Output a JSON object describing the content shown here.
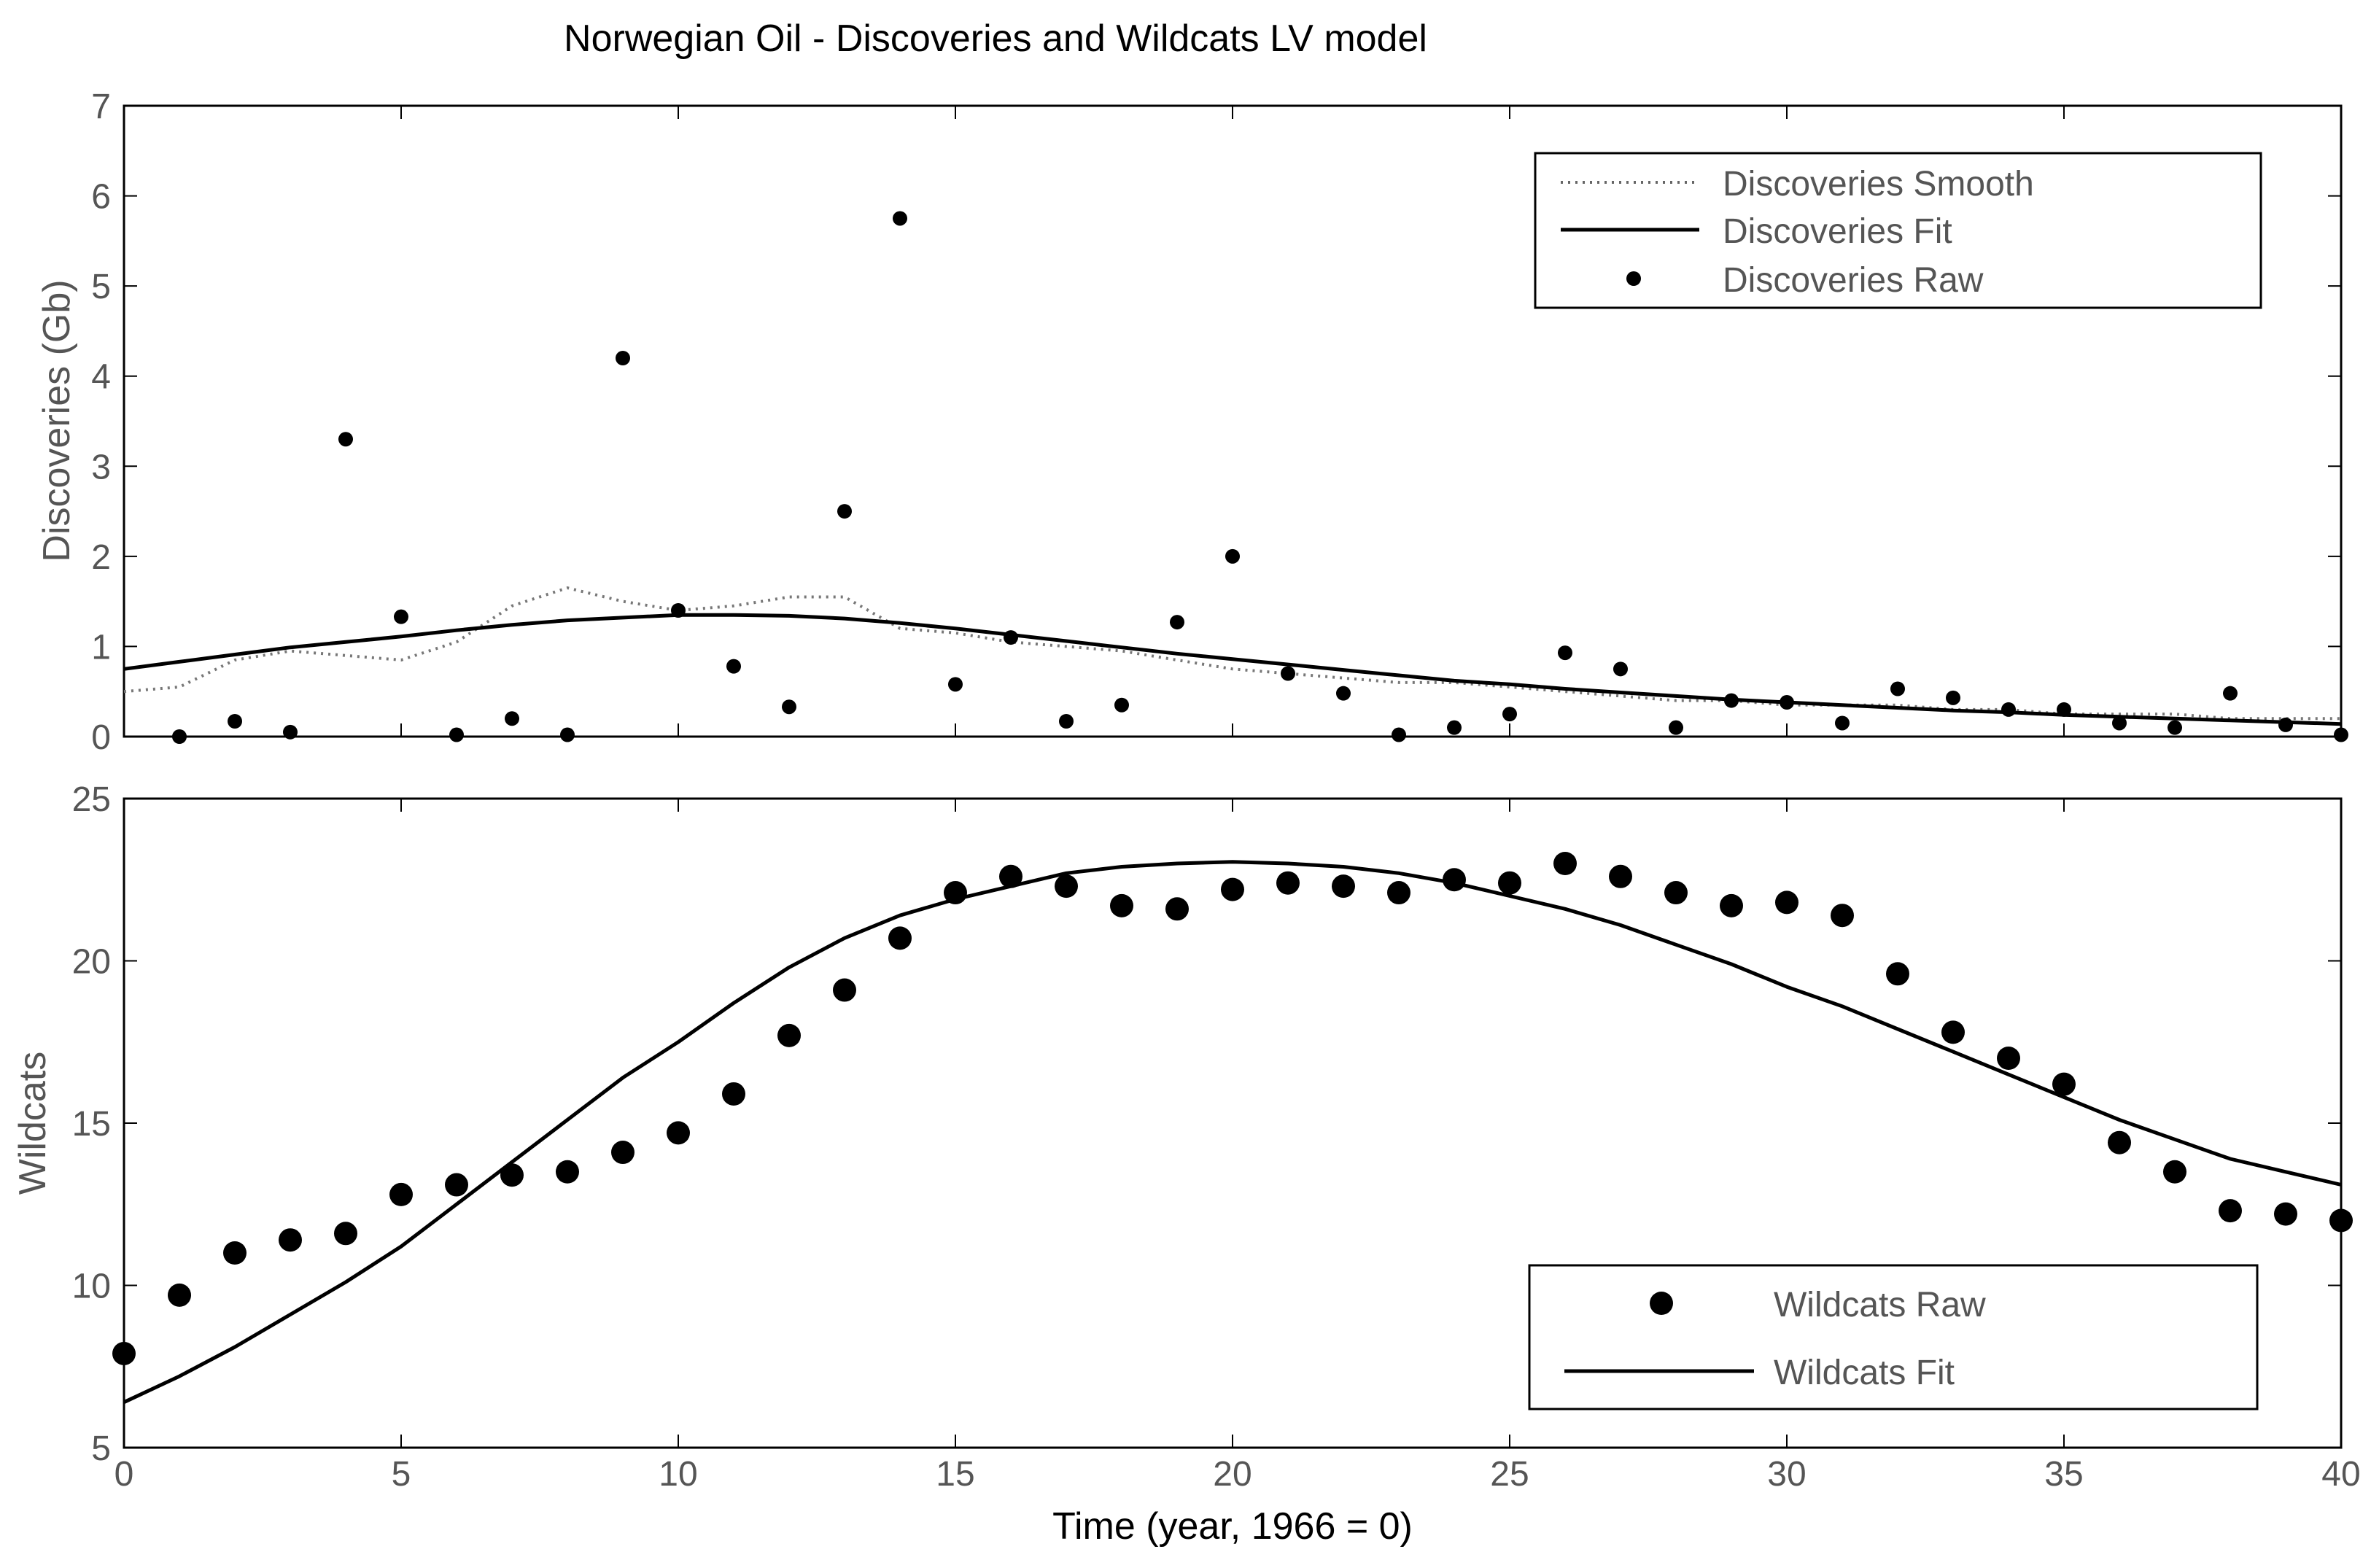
{
  "figure": {
    "title": "Norwegian Oil - Discoveries and Wildcats LV model",
    "xlabel": "Time (year, 1966 = 0)"
  },
  "chart_data": [
    {
      "type": "line",
      "panel": "top",
      "title": "Norwegian Oil - Discoveries and Wildcats LV model",
      "xlabel": "",
      "ylabel": "Discoveries (Gb)",
      "xlim": [
        0,
        40
      ],
      "ylim": [
        0,
        7
      ],
      "xticks": [
        "0",
        "5",
        "10",
        "15",
        "20",
        "25",
        "30",
        "35",
        "40"
      ],
      "yticks": [
        "0",
        "1",
        "2",
        "3",
        "4",
        "5",
        "6",
        "7"
      ],
      "legend": {
        "placement": "top-right"
      },
      "series": [
        {
          "name": "Discoveries Smooth",
          "style": "dotted",
          "x": [
            0,
            1,
            2,
            3,
            4,
            5,
            6,
            7,
            8,
            9,
            10,
            11,
            12,
            13,
            14,
            15,
            16,
            17,
            18,
            19,
            20,
            21,
            22,
            23,
            24,
            25,
            26,
            27,
            28,
            29,
            30,
            31,
            32,
            33,
            34,
            35,
            36,
            37,
            38,
            39,
            40
          ],
          "y": [
            0.5,
            0.55,
            0.85,
            0.95,
            0.9,
            0.85,
            1.05,
            1.45,
            1.65,
            1.5,
            1.4,
            1.45,
            1.55,
            1.55,
            1.2,
            1.15,
            1.05,
            1.0,
            0.95,
            0.85,
            0.75,
            0.7,
            0.65,
            0.6,
            0.6,
            0.55,
            0.5,
            0.45,
            0.4,
            0.4,
            0.35,
            0.35,
            0.35,
            0.3,
            0.3,
            0.25,
            0.25,
            0.25,
            0.2,
            0.2,
            0.2
          ]
        },
        {
          "name": "Discoveries Fit",
          "style": "solid",
          "x": [
            0,
            1,
            2,
            3,
            4,
            5,
            6,
            7,
            8,
            9,
            10,
            11,
            12,
            13,
            14,
            15,
            16,
            17,
            18,
            19,
            20,
            21,
            22,
            23,
            24,
            25,
            26,
            27,
            28,
            29,
            30,
            31,
            32,
            33,
            34,
            35,
            36,
            37,
            38,
            39,
            40
          ],
          "y": [
            0.75,
            0.83,
            0.91,
            0.99,
            1.05,
            1.11,
            1.18,
            1.24,
            1.29,
            1.32,
            1.35,
            1.35,
            1.34,
            1.31,
            1.26,
            1.2,
            1.13,
            1.06,
            0.99,
            0.92,
            0.86,
            0.8,
            0.74,
            0.68,
            0.62,
            0.58,
            0.53,
            0.49,
            0.45,
            0.41,
            0.38,
            0.35,
            0.32,
            0.29,
            0.27,
            0.24,
            0.22,
            0.2,
            0.18,
            0.16,
            0.14
          ]
        },
        {
          "name": "Discoveries Raw",
          "style": "markers",
          "x": [
            1,
            2,
            3,
            4,
            5,
            6,
            7,
            8,
            9,
            10,
            11,
            12,
            13,
            14,
            15,
            16,
            17,
            18,
            19,
            20,
            21,
            22,
            23,
            24,
            25,
            26,
            27,
            28,
            29,
            30,
            31,
            32,
            33,
            34,
            35,
            36,
            37,
            38,
            39,
            40
          ],
          "y": [
            0.0,
            0.17,
            0.05,
            3.3,
            1.33,
            0.02,
            0.2,
            0.02,
            4.2,
            1.4,
            0.78,
            0.33,
            2.5,
            5.75,
            0.58,
            1.1,
            0.17,
            0.35,
            1.27,
            2.0,
            0.7,
            0.48,
            0.02,
            0.1,
            0.25,
            0.93,
            0.75,
            0.1,
            0.4,
            0.38,
            0.15,
            0.53,
            0.43,
            0.3,
            0.3,
            0.15,
            0.1,
            0.48,
            0.13,
            0.02
          ]
        }
      ]
    },
    {
      "type": "line",
      "panel": "bottom",
      "title": "",
      "xlabel": "Time (year, 1966 = 0)",
      "ylabel": "Wildcats",
      "xlim": [
        0,
        40
      ],
      "ylim": [
        5,
        25
      ],
      "xticks": [
        "0",
        "5",
        "10",
        "15",
        "20",
        "25",
        "30",
        "35",
        "40"
      ],
      "yticks": [
        "5",
        "10",
        "15",
        "20",
        "25"
      ],
      "legend": {
        "placement": "bottom-right"
      },
      "series": [
        {
          "name": "Wildcats Raw",
          "style": "markers",
          "x": [
            0,
            1,
            2,
            3,
            4,
            5,
            6,
            7,
            8,
            9,
            10,
            11,
            12,
            13,
            14,
            15,
            16,
            17,
            18,
            19,
            20,
            21,
            22,
            23,
            24,
            25,
            26,
            27,
            28,
            29,
            30,
            31,
            32,
            33,
            34,
            35,
            36,
            37,
            38,
            39,
            40
          ],
          "y": [
            7.9,
            9.7,
            11.0,
            11.4,
            11.6,
            12.8,
            13.1,
            13.4,
            13.5,
            14.1,
            14.7,
            15.9,
            17.7,
            19.1,
            20.7,
            22.1,
            22.6,
            22.3,
            21.7,
            21.6,
            22.2,
            22.4,
            22.3,
            22.1,
            22.5,
            22.4,
            23.0,
            22.6,
            22.1,
            21.7,
            21.8,
            21.4,
            19.6,
            17.8,
            17.0,
            16.2,
            14.4,
            13.5,
            12.3,
            12.2,
            12.0
          ]
        },
        {
          "name": "Wildcats Fit",
          "style": "solid",
          "x": [
            0,
            1,
            2,
            3,
            4,
            5,
            6,
            7,
            8,
            9,
            10,
            11,
            12,
            13,
            14,
            15,
            16,
            17,
            18,
            19,
            20,
            21,
            22,
            23,
            24,
            25,
            26,
            27,
            28,
            29,
            30,
            31,
            32,
            33,
            34,
            35,
            36,
            37,
            38,
            39,
            40
          ],
          "y": [
            6.4,
            7.2,
            8.1,
            9.1,
            10.1,
            11.2,
            12.5,
            13.8,
            15.1,
            16.4,
            17.5,
            18.7,
            19.8,
            20.7,
            21.4,
            21.9,
            22.3,
            22.7,
            22.9,
            23.0,
            23.05,
            23.0,
            22.9,
            22.7,
            22.4,
            22.0,
            21.6,
            21.1,
            20.5,
            19.9,
            19.2,
            18.6,
            17.9,
            17.2,
            16.5,
            15.8,
            15.1,
            14.5,
            13.9,
            13.5,
            13.1
          ]
        }
      ]
    }
  ]
}
